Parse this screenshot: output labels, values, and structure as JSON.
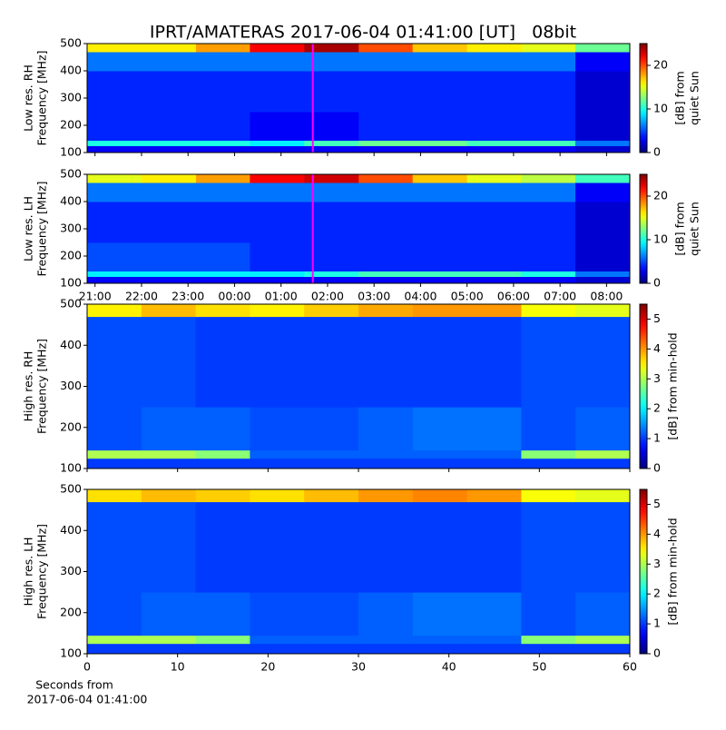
{
  "title": "IPRT/AMATERAS 2017-06-04 01:41:00 [UT]   08bit",
  "chart_data": [
    {
      "type": "heatmap",
      "ylabel": [
        "Low res. RH",
        "Frequency [MHz]"
      ],
      "clabel": [
        "[dB] from",
        "quiet Sun"
      ],
      "xlim": [
        20.83,
        32.5
      ],
      "ylim": [
        100,
        500
      ],
      "yticks": [
        100,
        200,
        300,
        400,
        500
      ],
      "xticks": [
        {
          "value": 21,
          "label": "21:00"
        },
        {
          "value": 22,
          "label": "22:00"
        },
        {
          "value": 23,
          "label": "23:00"
        },
        {
          "value": 24,
          "label": "00:00"
        },
        {
          "value": 25,
          "label": "01:00"
        },
        {
          "value": 26,
          "label": "02:00"
        },
        {
          "value": 27,
          "label": "03:00"
        },
        {
          "value": 28,
          "label": "04:00"
        },
        {
          "value": 29,
          "label": "05:00"
        },
        {
          "value": 30,
          "label": "06:00"
        },
        {
          "value": 31,
          "label": "07:00"
        },
        {
          "value": 32,
          "label": "08:00"
        }
      ],
      "show_xticklabels": false,
      "clim": [
        0,
        25
      ],
      "cticks": [
        0,
        10,
        20
      ],
      "marker_x": 25.683,
      "marker_color": "#ff00ff",
      "x_edges": [
        20.83,
        22,
        23.17,
        24.33,
        25.5,
        26.67,
        27.83,
        29,
        30.17,
        31.33,
        32.5
      ],
      "y_edges": [
        100,
        125,
        145,
        250,
        400,
        470,
        500
      ],
      "z": [
        [
          3,
          3,
          3,
          3,
          3,
          3,
          3,
          3,
          3,
          2
        ],
        [
          10,
          10,
          10,
          9,
          11,
          12,
          12,
          11,
          11,
          6
        ],
        [
          4,
          4,
          4,
          3,
          3,
          4,
          4,
          4,
          4,
          2
        ],
        [
          4,
          4,
          4,
          4,
          4,
          4,
          4,
          4,
          4,
          2
        ],
        [
          6,
          6,
          6,
          6,
          6,
          6,
          6,
          6,
          6,
          3
        ],
        [
          16,
          16,
          18,
          22,
          24,
          20,
          17,
          16,
          15,
          12
        ]
      ]
    },
    {
      "type": "heatmap",
      "ylabel": [
        "Low res. LH",
        "Frequency [MHz]"
      ],
      "clabel": [
        "[dB] from",
        "quiet Sun"
      ],
      "xlim": [
        20.83,
        32.5
      ],
      "ylim": [
        100,
        500
      ],
      "yticks": [
        100,
        200,
        300,
        400,
        500
      ],
      "xticks": [
        {
          "value": 21,
          "label": "21:00"
        },
        {
          "value": 22,
          "label": "22:00"
        },
        {
          "value": 23,
          "label": "23:00"
        },
        {
          "value": 24,
          "label": "00:00"
        },
        {
          "value": 25,
          "label": "01:00"
        },
        {
          "value": 26,
          "label": "02:00"
        },
        {
          "value": 27,
          "label": "03:00"
        },
        {
          "value": 28,
          "label": "04:00"
        },
        {
          "value": 29,
          "label": "05:00"
        },
        {
          "value": 30,
          "label": "06:00"
        },
        {
          "value": 31,
          "label": "07:00"
        },
        {
          "value": 32,
          "label": "08:00"
        }
      ],
      "show_xticklabels": true,
      "clim": [
        0,
        25
      ],
      "cticks": [
        0,
        10,
        20
      ],
      "marker_x": 25.683,
      "marker_color": "#ff00ff",
      "x_edges": [
        20.83,
        22,
        23.17,
        24.33,
        25.5,
        26.67,
        27.83,
        29,
        30.17,
        31.33,
        32.5
      ],
      "y_edges": [
        100,
        125,
        145,
        250,
        400,
        470,
        500
      ],
      "z": [
        [
          3,
          3,
          3,
          3,
          3,
          3,
          3,
          3,
          3,
          2
        ],
        [
          9,
          9,
          9,
          9,
          10,
          11,
          11,
          11,
          10,
          6
        ],
        [
          5,
          5,
          5,
          4,
          4,
          4,
          4,
          4,
          4,
          2
        ],
        [
          4,
          4,
          4,
          4,
          4,
          4,
          4,
          4,
          4,
          2
        ],
        [
          6,
          6,
          6,
          6,
          6,
          6,
          6,
          6,
          6,
          3
        ],
        [
          15,
          16,
          18,
          22,
          23,
          20,
          17,
          15,
          14,
          11
        ]
      ]
    },
    {
      "type": "heatmap",
      "ylabel": [
        "High res. RH",
        "Frequency [MHz]"
      ],
      "clabel": [
        "[dB] from min-hold"
      ],
      "xlim": [
        0,
        60
      ],
      "ylim": [
        100,
        500
      ],
      "yticks": [
        100,
        200,
        300,
        400,
        500
      ],
      "xticks": [
        0,
        10,
        20,
        30,
        40,
        50,
        60
      ],
      "show_xticklabels": false,
      "clim": [
        0,
        5.5
      ],
      "cticks": [
        0,
        1,
        2,
        3,
        4,
        5
      ],
      "x_edges": [
        0,
        6,
        12,
        18,
        24,
        30,
        36,
        42,
        48,
        54,
        60
      ],
      "y_edges": [
        100,
        125,
        145,
        250,
        400,
        470,
        500
      ],
      "z": [
        [
          1,
          1,
          1,
          1,
          1,
          1,
          1,
          1,
          1,
          1
        ],
        [
          3,
          3,
          2.8,
          1.2,
          1.2,
          1.2,
          1.2,
          1.2,
          2.8,
          3
        ],
        [
          1.1,
          1.2,
          1.2,
          1.1,
          1.1,
          1.2,
          1.3,
          1.3,
          1.1,
          1.2
        ],
        [
          1.1,
          1.1,
          1,
          1,
          1,
          1,
          1,
          1,
          1.1,
          1.1
        ],
        [
          1.1,
          1.1,
          1,
          1,
          1,
          1,
          1,
          1,
          1.1,
          1.1
        ],
        [
          3.5,
          3.8,
          3.6,
          3.5,
          3.7,
          3.9,
          4,
          4,
          3.4,
          3.3
        ]
      ]
    },
    {
      "type": "heatmap",
      "ylabel": [
        "High res. LH",
        "Frequency [MHz]"
      ],
      "clabel": [
        "[dB] from min-hold"
      ],
      "xlim": [
        0,
        60
      ],
      "ylim": [
        100,
        500
      ],
      "yticks": [
        100,
        200,
        300,
        400,
        500
      ],
      "xticks": [
        0,
        10,
        20,
        30,
        40,
        50,
        60
      ],
      "show_xticklabels": true,
      "clim": [
        0,
        5.5
      ],
      "cticks": [
        0,
        1,
        2,
        3,
        4,
        5
      ],
      "xlabel": [
        "Seconds from",
        "2017-06-04 01:41:00"
      ],
      "x_edges": [
        0,
        6,
        12,
        18,
        24,
        30,
        36,
        42,
        48,
        54,
        60
      ],
      "y_edges": [
        100,
        125,
        145,
        250,
        400,
        470,
        500
      ],
      "z": [
        [
          1,
          1,
          1,
          1,
          1,
          1,
          1,
          1,
          1,
          1
        ],
        [
          3,
          3,
          2.8,
          1.2,
          1.2,
          1.2,
          1.2,
          1.2,
          2.8,
          3
        ],
        [
          1.1,
          1.2,
          1.2,
          1.1,
          1.1,
          1.2,
          1.3,
          1.3,
          1.1,
          1.2
        ],
        [
          1.1,
          1.1,
          1,
          1,
          1,
          1,
          1,
          1,
          1.1,
          1.1
        ],
        [
          1.1,
          1.1,
          1,
          1,
          1,
          1,
          1,
          1,
          1.1,
          1.1
        ],
        [
          3.6,
          3.8,
          3.7,
          3.6,
          3.8,
          4,
          4.1,
          4,
          3.4,
          3.3
        ]
      ]
    }
  ]
}
